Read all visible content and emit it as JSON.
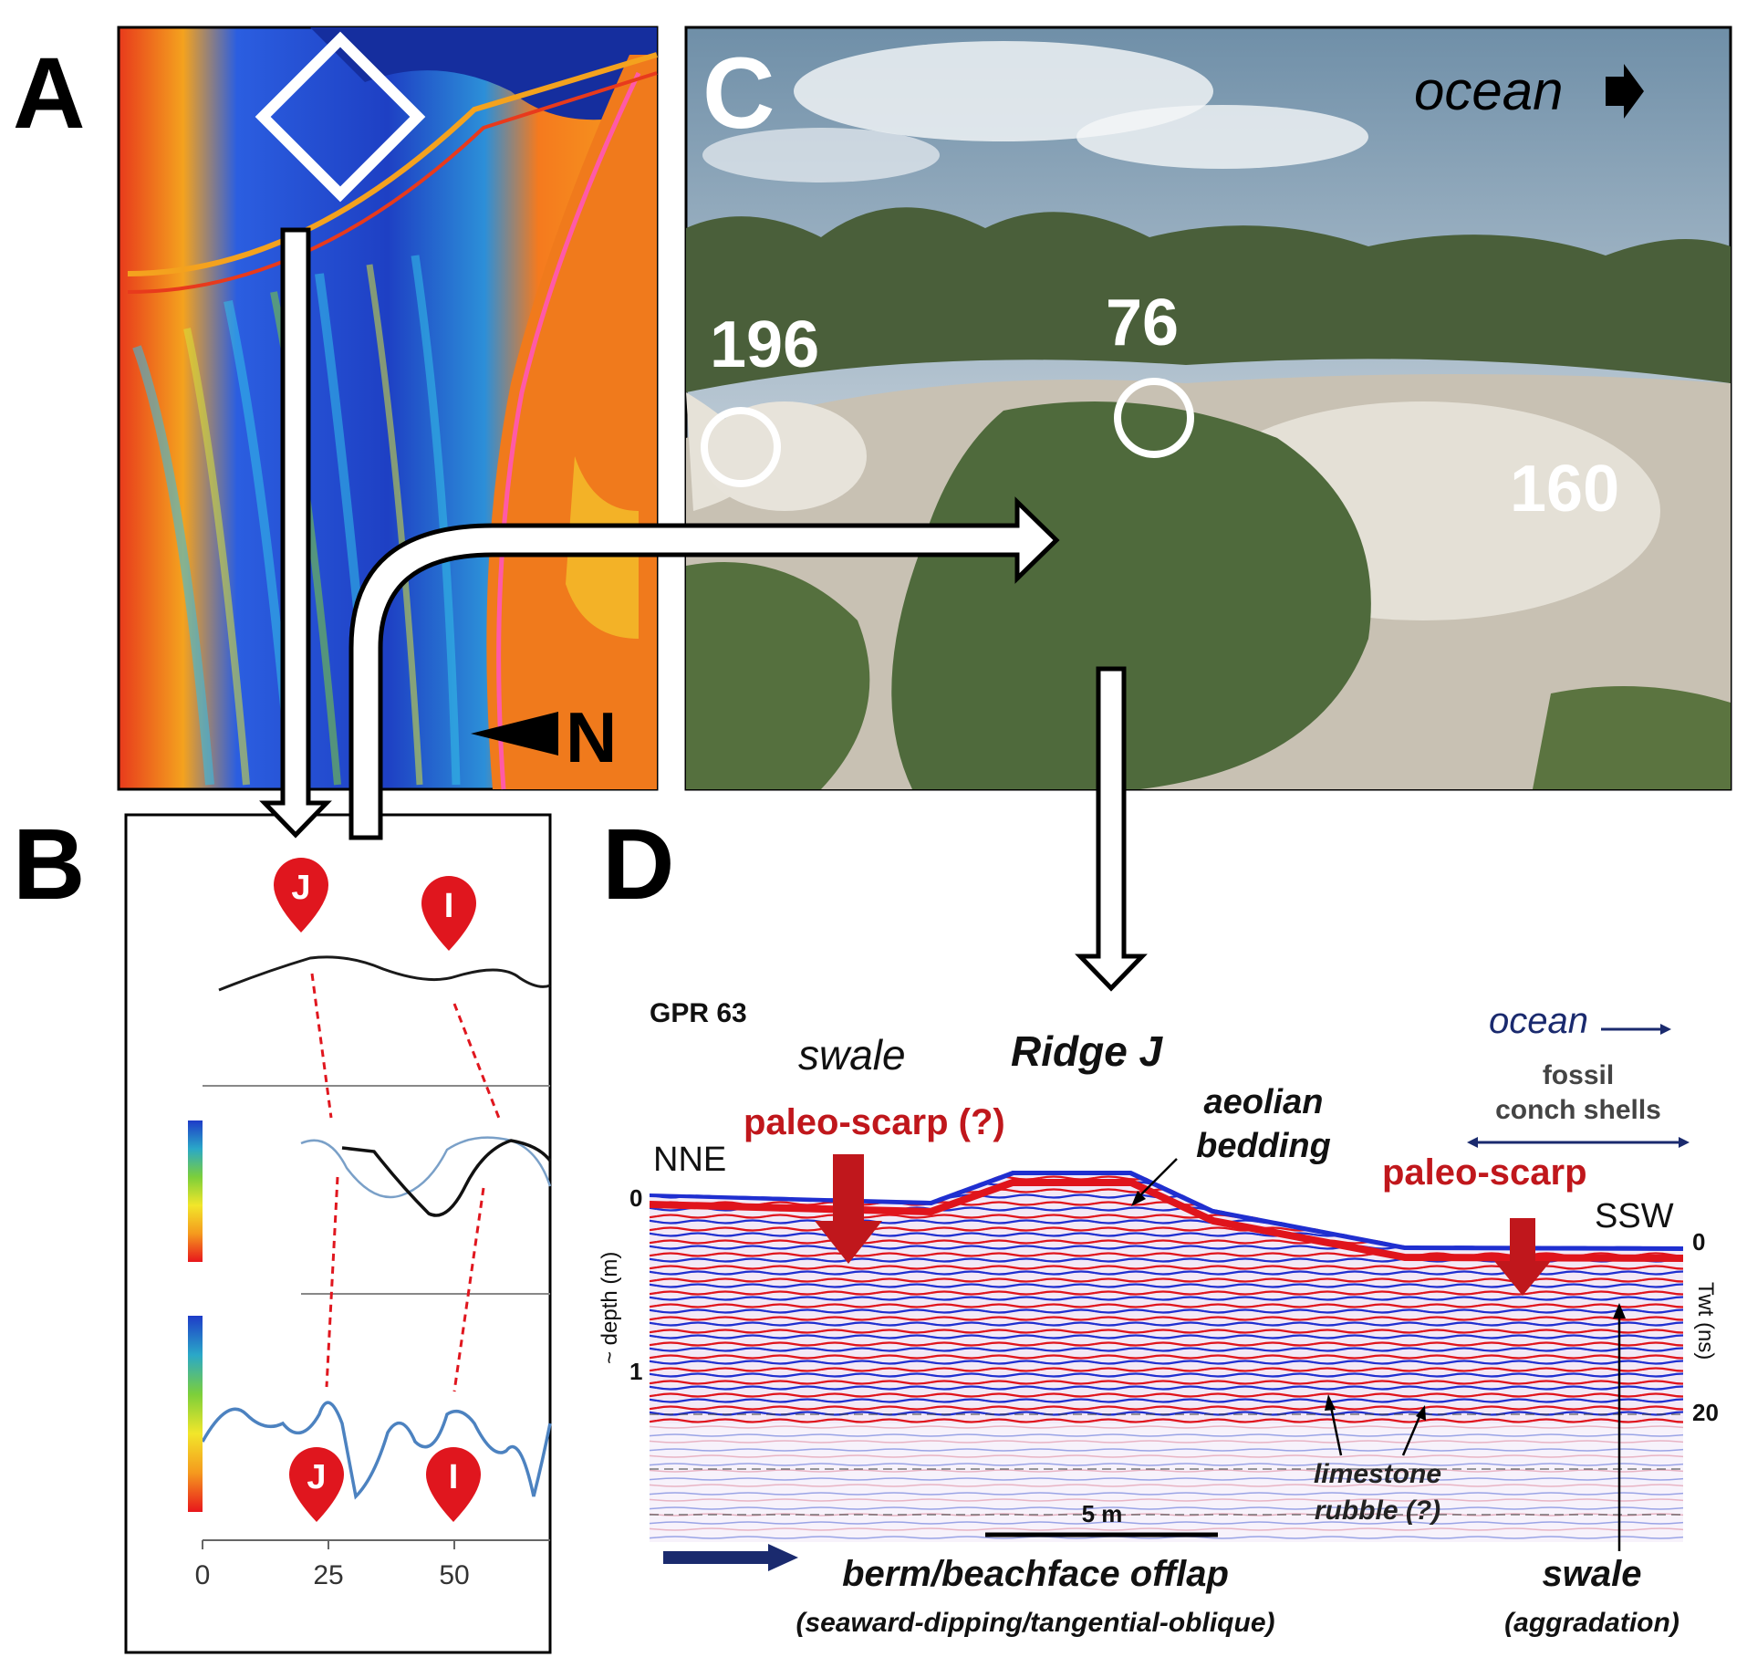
{
  "panels": {
    "a": {
      "label": "A",
      "north_arrow": "N"
    },
    "b": {
      "label": "B",
      "marker_labels": [
        "J",
        "I"
      ],
      "x_ticks": [
        "0",
        "25",
        "50"
      ]
    },
    "c": {
      "label": "C",
      "direction_label": "ocean",
      "photo_labels": [
        "196",
        "76",
        "160"
      ]
    },
    "d": {
      "label": "D",
      "profile_name": "GPR 63",
      "swale_top": "swale",
      "ridge": "Ridge J",
      "ocean": "ocean",
      "fossil_line1": "fossil",
      "fossil_line2": "conch shells",
      "paleo_scarp_q": "paleo-scarp (?)",
      "aeolian_line1": "aeolian",
      "aeolian_line2": "bedding",
      "paleo_scarp": "paleo-scarp",
      "nne": "NNE",
      "ssw": "SSW",
      "depth_axis": "~ depth (m)",
      "depth_ticks": [
        "0",
        "1"
      ],
      "twt_axis": "Twt (ns)",
      "twt_ticks": [
        "0",
        "20"
      ],
      "scale_bar": "5 m",
      "limestone_line1": "limestone",
      "limestone_line2": "rubble (?)",
      "berm": "berm/beachface offlap",
      "berm_sub": "(seaward-dipping/tangential-oblique)",
      "swale_bottom": "swale",
      "swale_sub": "(aggradation)"
    }
  },
  "colors": {
    "scarp_red": "#c0171c",
    "ocean_blue": "#1a2a6e",
    "marker_red": "#e0161e",
    "gpr_blue": "#1f2fd0",
    "gpr_red": "#e0141c"
  }
}
